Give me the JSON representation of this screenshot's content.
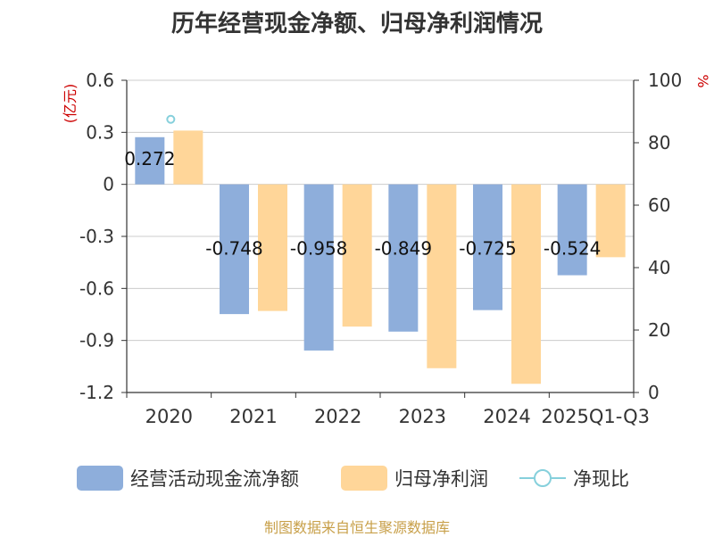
{
  "chart_data": {
    "type": "bar",
    "title": "历年经营现金净额、归母净利润情况",
    "categories": [
      "2020",
      "2021",
      "2022",
      "2023",
      "2024",
      "2025Q1-Q3"
    ],
    "left_axis": {
      "label": "(亿元)",
      "ylim": [
        -1.2,
        0.6
      ],
      "ticks": [
        "0.6",
        "0.3",
        "0",
        "-0.3",
        "-0.6",
        "-0.9",
        "-1.2"
      ]
    },
    "right_axis": {
      "label": "%",
      "ylim": [
        0,
        100
      ],
      "ticks": [
        "100",
        "80",
        "60",
        "40",
        "20",
        "0"
      ]
    },
    "series": [
      {
        "name": "经营活动现金流净额",
        "color": "#8eaedb",
        "axis": "left",
        "values": [
          0.272,
          -0.748,
          -0.958,
          -0.849,
          -0.725,
          -0.524
        ],
        "labels": [
          "0.272",
          "-0.748",
          "-0.958",
          "-0.849",
          "-0.725",
          "-0.524"
        ]
      },
      {
        "name": "归母净利润",
        "color": "#ffd699",
        "axis": "left",
        "values": [
          0.31,
          -0.73,
          -0.82,
          -1.06,
          -1.15,
          -0.42
        ]
      },
      {
        "name": "净现比",
        "color": "#86d0dc",
        "axis": "right",
        "type": "line",
        "values": [
          87.5,
          null,
          null,
          null,
          null,
          null
        ]
      }
    ],
    "source": "制图数据来自恒生聚源数据库"
  }
}
